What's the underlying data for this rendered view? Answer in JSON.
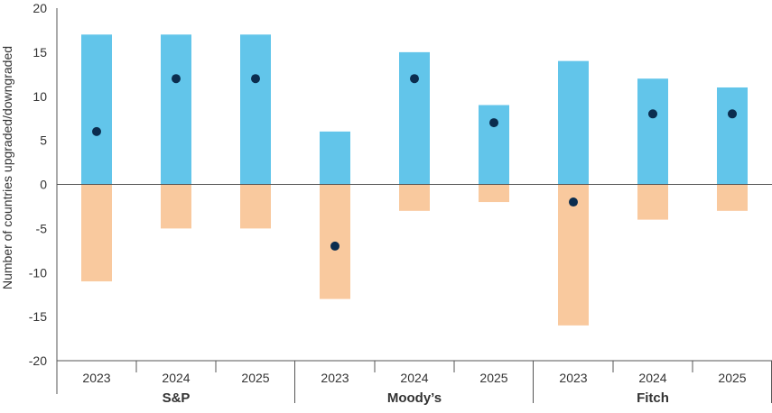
{
  "chart_data": {
    "type": "bar",
    "ylabel": "Number of countries upgraded/downgraded",
    "ylim": [
      -20,
      20
    ],
    "yticks": [
      20,
      15,
      10,
      5,
      0,
      -5,
      -10,
      -15,
      -20
    ],
    "grid": false,
    "groups": [
      {
        "label": "S&P",
        "categories": [
          "2023",
          "2024",
          "2025"
        ]
      },
      {
        "label": "Moody’s",
        "categories": [
          "2023",
          "2024",
          "2025"
        ]
      },
      {
        "label": "Fitch",
        "categories": [
          "2023",
          "2024",
          "2025"
        ]
      }
    ],
    "series": [
      {
        "key": "upgrades",
        "kind": "bar",
        "color": "#62C5EA",
        "values": [
          17,
          17,
          17,
          6,
          15,
          9,
          14,
          12,
          11
        ]
      },
      {
        "key": "downgrades",
        "kind": "bar",
        "color": "#F9C99E",
        "values": [
          -11,
          -5,
          -5,
          -13,
          -3,
          -2,
          -16,
          -4,
          -3
        ]
      },
      {
        "key": "net",
        "kind": "dot",
        "color": "#0B2D4F",
        "values": [
          6,
          12,
          12,
          -7,
          12,
          7,
          -2,
          8,
          8
        ]
      }
    ]
  }
}
